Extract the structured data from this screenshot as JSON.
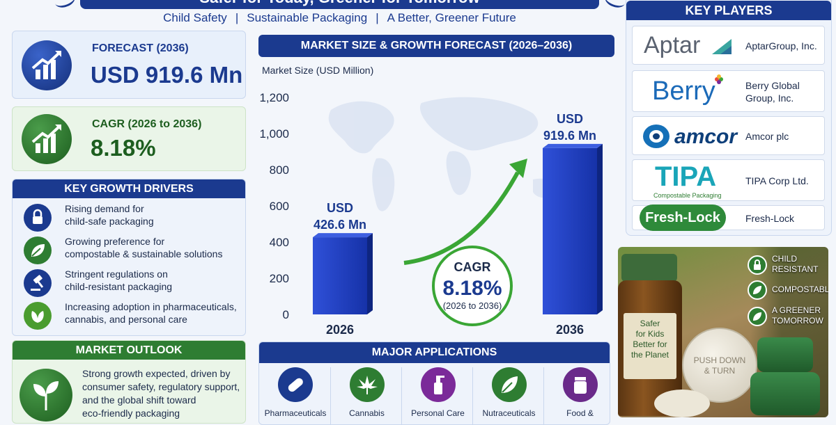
{
  "header": {
    "title": "Safer for Today, Greener for Tomorrow",
    "subtitle_parts": [
      "Child Safety",
      "Sustainable Packaging",
      "A Better, Greener Future"
    ],
    "separator": "|"
  },
  "forecast": {
    "label": "FORECAST (2036)",
    "value": "USD 919.6 Mn",
    "icon": "chart-up-icon"
  },
  "cagr": {
    "label": "CAGR (2026 to 2036)",
    "value": "8.18%",
    "icon": "chart-up-icon"
  },
  "drivers": {
    "heading": "KEY GROWTH DRIVERS",
    "items": [
      {
        "icon": "padlock-icon",
        "line1": "Rising demand for",
        "line2": "child-safe packaging"
      },
      {
        "icon": "leaf-icon",
        "line1": "Growing preference for",
        "line2": "compostable & sustainable solutions"
      },
      {
        "icon": "gavel-icon",
        "line1": "Stringent regulations on",
        "line2": "child-resistant packaging"
      },
      {
        "icon": "leaves-icon",
        "line1": "Increasing adoption in pharmaceuticals,",
        "line2": "cannabis, and personal care"
      }
    ]
  },
  "outlook": {
    "heading": "MARKET OUTLOOK",
    "lines": [
      "Strong growth expected, driven by",
      "consumer safety, regulatory support,",
      "and the global shift toward",
      "eco-friendly packaging"
    ]
  },
  "chart_heading": "MARKET SIZE & GROWTH FORECAST (2026–2036)",
  "chart_data": {
    "type": "bar",
    "title": "MARKET SIZE & GROWTH FORECAST (2026–2036)",
    "ylabel": "Market Size (USD Million)",
    "categories": [
      "2026",
      "2036"
    ],
    "values": [
      426.6,
      919.6
    ],
    "bar_labels": [
      [
        "USD",
        "426.6 Mn"
      ],
      [
        "USD",
        "919.6 Mn"
      ]
    ],
    "ylim": [
      0,
      1200
    ],
    "yticks": [
      "0",
      "200",
      "400",
      "600",
      "800",
      "1,000",
      "1,200"
    ],
    "ytick_values": [
      0,
      200,
      400,
      600,
      800,
      1000,
      1200
    ],
    "annotation": {
      "title": "CAGR",
      "value": "8.18%",
      "period": "(2026 to 2036)"
    },
    "colors": {
      "bar": "#1a3ab8",
      "bar_dark": "#0e2580",
      "arrow": "#3aa635"
    }
  },
  "applications": {
    "heading": "MAJOR APPLICATIONS",
    "items": [
      {
        "label": "Pharmaceuticals",
        "icon": "pill-icon",
        "color": "#1b3a8f"
      },
      {
        "label": "Cannabis",
        "icon": "cannabis-leaf-icon",
        "color": "#2e7d32"
      },
      {
        "label": "Personal Care",
        "icon": "pump-bottle-icon",
        "color": "#7b2a99"
      },
      {
        "label": "Nutraceuticals",
        "icon": "leaf-icon",
        "color": "#2e7d32"
      },
      {
        "label": "Food &",
        "icon": "jar-icon",
        "color": "#6a2a8a"
      }
    ]
  },
  "players": {
    "heading": "KEY PLAYERS",
    "items": [
      {
        "logo": "Aptar",
        "name": "AptarGroup, Inc."
      },
      {
        "logo": "Berry",
        "name": "Berry Global Group, Inc."
      },
      {
        "logo": "amcor",
        "name": "Amcor plc"
      },
      {
        "logo": "TIPA",
        "logo_sub": "Compostable Packaging",
        "name": "TIPA Corp Ltd."
      },
      {
        "logo": "Fresh-Lock",
        "name": "Fresh-Lock"
      }
    ]
  },
  "photo": {
    "bottle_label": [
      "Safer",
      "for Kids",
      "Better for",
      "the Planet"
    ],
    "cap_text": [
      "PUSH DOWN",
      "& TURN"
    ],
    "badges": [
      {
        "icon": "padlock-icon",
        "line1": "CHILD",
        "line2": "RESISTANT"
      },
      {
        "icon": "leaf-icon",
        "line1": "COMPOSTABLE",
        "line2": ""
      },
      {
        "icon": "leaf-icon",
        "line1": "A GREENER",
        "line2": "TOMORROW"
      }
    ]
  },
  "colors": {
    "navy": "#1b3a8f",
    "green": "#2e7d32",
    "light_blue": "#e8f0fb",
    "light_green": "#eaf5e8"
  }
}
